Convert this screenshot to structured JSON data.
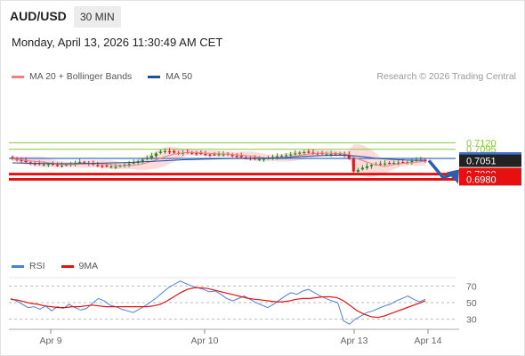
{
  "header": {
    "symbol": "AUD/USD",
    "timeframe": "30 MIN",
    "datetime": "Monday, April 13, 2026 11:30:49 AM CET"
  },
  "legend": {
    "bollinger": "MA 20 + Bollinger Bands",
    "ma50": "MA 50",
    "credit": "Research © 2026 Trading Central"
  },
  "rsi_legend": {
    "rsi": "RSI",
    "ma": "9MA"
  },
  "colors": {
    "bollinger": "#f08080",
    "ma50": "#1f4e9a",
    "bull": "#2e8b22",
    "bear": "#d42020",
    "target": "#e61010",
    "resistance": "#8cc63f",
    "current": "#3c6fd1",
    "arrow": "#2f5ea8"
  },
  "chart_data": [
    {
      "type": "line",
      "title": "AUD/USD 30 MIN",
      "y_levels": [
        {
          "label": "0.7120",
          "value": 0.712,
          "kind": "resistance"
        },
        {
          "label": "0.7095",
          "value": 0.7095,
          "kind": "resistance"
        },
        {
          "label": "0.7060",
          "value": 0.706,
          "kind": "current"
        },
        {
          "label": "0.7051",
          "value": 0.7051,
          "kind": "price"
        },
        {
          "label": "0.7000",
          "value": 0.7,
          "kind": "target"
        },
        {
          "label": "0.6980",
          "value": 0.698,
          "kind": "target"
        }
      ],
      "x_ticks": [
        "Apr 9",
        "Apr 10",
        "Apr 13",
        "Apr 14"
      ],
      "ylim": [
        0.697,
        0.7135
      ],
      "close": [
        0.7059,
        0.7055,
        0.705,
        0.7046,
        0.7042,
        0.704,
        0.7038,
        0.7037,
        0.7039,
        0.7036,
        0.7034,
        0.7033,
        0.7036,
        0.7039,
        0.7042,
        0.7046,
        0.7043,
        0.704,
        0.7036,
        0.7033,
        0.7031,
        0.703,
        0.7029,
        0.7028,
        0.7032,
        0.7036,
        0.704,
        0.7044,
        0.7049,
        0.7055,
        0.7062,
        0.707,
        0.7079,
        0.7086,
        0.7088,
        0.7086,
        0.7082,
        0.708,
        0.7082,
        0.7083,
        0.7081,
        0.7079,
        0.7078,
        0.7076,
        0.7074,
        0.7075,
        0.7077,
        0.7076,
        0.7074,
        0.7071,
        0.7068,
        0.7065,
        0.7063,
        0.7061,
        0.7058,
        0.7057,
        0.7059,
        0.7062,
        0.7065,
        0.7068,
        0.707,
        0.7072,
        0.7075,
        0.7079,
        0.7082,
        0.7084,
        0.7083,
        0.7081,
        0.7079,
        0.7077,
        0.7076,
        0.7077,
        0.7078,
        0.7077,
        0.7073,
        0.7059,
        0.701,
        0.7016,
        0.7024,
        0.703,
        0.7035,
        0.7038,
        0.704,
        0.7041,
        0.7042,
        0.7043,
        0.7044,
        0.7045,
        0.7046,
        0.705,
        0.7055,
        0.7055,
        0.7052
      ],
      "ma50": [
        0.7043,
        0.7042,
        0.7041,
        0.7041,
        0.704,
        0.704,
        0.704,
        0.7041,
        0.7041,
        0.7042,
        0.7043,
        0.7044,
        0.7045,
        0.7047,
        0.7049,
        0.7051,
        0.7053,
        0.7055,
        0.7056,
        0.7057,
        0.7058,
        0.7059,
        0.706,
        0.706,
        0.7061,
        0.7061,
        0.7062,
        0.7063,
        0.7066,
        0.7068,
        0.707,
        0.7071,
        0.7072,
        0.7072,
        0.707,
        0.7066,
        0.7061,
        0.7058,
        0.7056,
        0.7054,
        0.7053,
        0.7053
      ],
      "series": [
        {
          "name": "MA 20 + Bollinger Bands"
        },
        {
          "name": "MA 50"
        }
      ]
    },
    {
      "type": "line",
      "y_ticks": [
        70,
        50,
        30
      ],
      "ylim": [
        20,
        80
      ],
      "series": [
        {
          "name": "RSI",
          "values": [
            55,
            52,
            48,
            44,
            45,
            42,
            46,
            40,
            45,
            43,
            48,
            44,
            41,
            43,
            49,
            55,
            52,
            47,
            45,
            42,
            40,
            38,
            42,
            46,
            51,
            56,
            62,
            68,
            72,
            76,
            73,
            70,
            68,
            66,
            63,
            64,
            60,
            55,
            52,
            55,
            58,
            54,
            50,
            47,
            44,
            48,
            53,
            58,
            62,
            60,
            64,
            66,
            62,
            58,
            55,
            52,
            50,
            28,
            24,
            30,
            34,
            38,
            40,
            43,
            46,
            48,
            52,
            55,
            58,
            54,
            51,
            54
          ]
        },
        {
          "name": "9MA",
          "values": [
            54,
            53,
            51,
            49,
            48,
            46,
            45,
            44,
            44,
            45,
            45,
            46,
            47,
            46,
            45,
            45,
            45,
            45,
            45,
            45,
            45,
            46,
            48,
            52,
            57,
            62,
            66,
            68,
            68,
            67,
            65,
            63,
            61,
            59,
            57,
            55,
            54,
            53,
            52,
            51,
            51,
            52,
            54,
            55,
            55,
            56,
            57,
            57,
            56,
            52,
            46,
            40,
            36,
            33,
            32,
            34,
            37,
            40,
            43,
            46,
            49,
            52
          ]
        }
      ]
    }
  ]
}
